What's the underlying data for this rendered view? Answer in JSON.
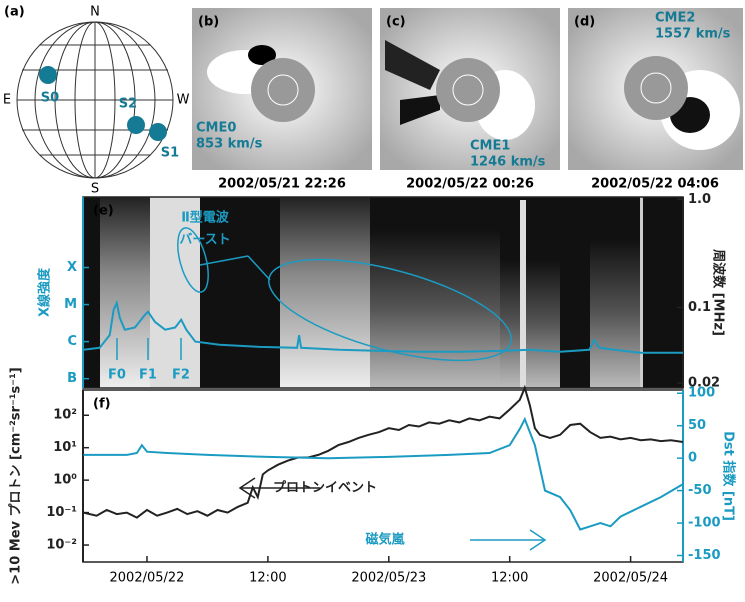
{
  "panels": [
    {
      "label": "(a)",
      "compass": [
        "N",
        "E",
        "S",
        "W"
      ],
      "sources": [
        "S0",
        "S2",
        "S1"
      ]
    },
    {
      "label": "(b)",
      "event": "CME0",
      "speed": "853 km/s",
      "time": "2002/05/21 22:26"
    },
    {
      "label": "(c)",
      "event": "CME1",
      "speed": "1246 km/s",
      "time": "2002/05/22 00:26"
    },
    {
      "label": "(d)",
      "event": "CME2",
      "speed": "1557 km/s",
      "time": "2002/05/22 04:06"
    }
  ],
  "chart_data": [
    {
      "type": "line",
      "panel": "(e)",
      "ylabel": "X線強度",
      "y2label": "周波数 [MHz]",
      "xlim": [
        -6.35,
        53.2
      ],
      "yscale": "log",
      "ylim": [
        5.6e-08,
        0.008
      ],
      "yticks": [
        {
          "value": 1e-07,
          "label": "B"
        },
        {
          "value": 1e-06,
          "label": "C"
        },
        {
          "value": 1e-05,
          "label": "M"
        },
        {
          "value": 0.0001,
          "label": "X"
        }
      ],
      "y2scale": "log",
      "y2lim": [
        0.018,
        1.05
      ],
      "y2ticks": [
        0.02,
        0.1,
        {
          "value": 1,
          "label": "1.0"
        }
      ],
      "annotations": [
        "Ⅱ型電波",
        "バースト",
        "F0",
        "F1",
        "F2"
      ],
      "series": [
        {
          "color": "#1b9bc2",
          "x": [
            -6.3,
            -4.7,
            -3.7,
            -3.3,
            -3.0,
            -2.7,
            -2.2,
            -1.2,
            -0.2,
            0.1,
            0.8,
            1.8,
            2.8,
            3.4,
            3.9,
            4.8,
            7.2,
            11.2,
            14.9,
            15.1,
            15.3,
            19.1,
            23.1,
            27.1,
            31.0,
            35.0,
            38.0,
            41.0,
            43.9,
            44.4,
            44.9,
            48.9,
            53.2
          ],
          "values": [
            6e-07,
            6.8e-07,
            1.5e-06,
            7.3e-06,
            1.1e-05,
            4.4e-06,
            2.1e-06,
            2.4e-06,
            5.3e-06,
            6.4e-06,
            3.4e-06,
            2.1e-06,
            2.4e-06,
            3.9e-06,
            2.1e-06,
            1e-06,
            8.2e-07,
            7.2e-07,
            6.8e-07,
            1.5e-06,
            6.8e-07,
            6e-07,
            5.6e-07,
            5.3e-07,
            5.3e-07,
            5.6e-07,
            6e-07,
            5.3e-07,
            6e-07,
            1.1e-06,
            6.8e-07,
            5e-07,
            5e-07
          ]
        }
      ]
    },
    {
      "type": "line",
      "panel": "(f)",
      "ylabel": ">10 Mev プロトン [cm⁻²sr⁻¹s⁻¹]",
      "y2label": "Dst 指数 [nT]",
      "xlim": [
        -6.35,
        53.2
      ],
      "xticks": [
        {
          "value": 0,
          "label": "2002/05/22"
        },
        {
          "value": 12,
          "label": "12:00"
        },
        {
          "value": 24,
          "label": "2002/05/23"
        },
        {
          "value": 36,
          "label": "12:00"
        },
        {
          "value": 48,
          "label": "2002/05/24"
        }
      ],
      "yscale": "log",
      "ylim": [
        0.003,
        600
      ],
      "yticks": [
        {
          "value": 0.01,
          "label": "10⁻²"
        },
        {
          "value": 0.1,
          "label": "10⁻¹"
        },
        {
          "value": 1,
          "label": "10⁰"
        },
        {
          "value": 10,
          "label": "10¹"
        },
        {
          "value": 100,
          "label": "10²"
        }
      ],
      "y2lim": [
        -160,
        105
      ],
      "y2ticks": [
        100,
        50,
        0,
        -50,
        -100,
        -150
      ],
      "annotations": [
        "プロトンイベント",
        "磁気嵐"
      ],
      "series": [
        {
          "color": "#222222",
          "x": [
            -6.3,
            -5,
            -4,
            -3,
            -2,
            -1,
            0,
            1,
            2,
            3,
            4,
            5,
            6,
            7,
            8,
            9,
            10,
            10.5,
            11,
            11.5,
            12,
            13,
            14,
            15,
            16,
            17,
            18,
            19,
            20,
            21,
            22,
            23,
            24,
            25,
            26,
            27,
            28,
            29,
            30,
            31,
            32,
            33,
            34,
            35,
            36,
            37,
            37.5,
            38,
            38.5,
            39,
            40,
            41,
            42,
            43,
            44,
            45,
            46,
            47,
            48,
            49,
            50,
            51,
            52,
            53.2
          ],
          "values": [
            0.1,
            0.08,
            0.12,
            0.09,
            0.1,
            0.07,
            0.12,
            0.08,
            0.1,
            0.13,
            0.09,
            0.11,
            0.08,
            0.12,
            0.1,
            0.15,
            0.2,
            0.6,
            0.3,
            1.5,
            2,
            3,
            4,
            5,
            5,
            6,
            8,
            12,
            15,
            20,
            25,
            30,
            40,
            35,
            50,
            45,
            60,
            55,
            70,
            60,
            80,
            70,
            90,
            80,
            150,
            300,
            700,
            200,
            40,
            25,
            20,
            25,
            50,
            55,
            30,
            20,
            22,
            18,
            20,
            17,
            18,
            16,
            17,
            15
          ]
        },
        {
          "color": "#1b9bc2",
          "axis": "y2",
          "x": [
            -6.3,
            -2,
            -1,
            -0.5,
            0,
            2,
            6,
            12,
            18,
            24,
            30,
            34,
            36,
            37,
            37.5,
            38.5,
            39.5,
            41,
            42,
            43,
            44,
            45,
            46,
            47,
            49,
            51,
            53.2
          ],
          "values": [
            5,
            5,
            8,
            20,
            10,
            8,
            5,
            2,
            0,
            2,
            5,
            8,
            20,
            45,
            60,
            20,
            -50,
            -60,
            -80,
            -110,
            -105,
            -100,
            -105,
            -90,
            -75,
            -60,
            -40
          ]
        }
      ]
    }
  ]
}
